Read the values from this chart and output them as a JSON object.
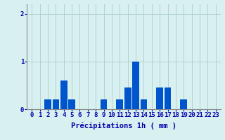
{
  "hours": [
    0,
    1,
    2,
    3,
    4,
    5,
    6,
    7,
    8,
    9,
    10,
    11,
    12,
    13,
    14,
    15,
    16,
    17,
    18,
    19,
    20,
    21,
    22,
    23
  ],
  "values": [
    0.0,
    0.0,
    0.2,
    0.2,
    0.6,
    0.2,
    0.0,
    0.0,
    0.0,
    0.2,
    0.0,
    0.2,
    0.45,
    1.0,
    0.2,
    0.0,
    0.45,
    0.45,
    0.0,
    0.2,
    0.0,
    0.0,
    0.0,
    0.0
  ],
  "bar_color": "#0055cc",
  "bg_color": "#d8f0f0",
  "grid_color": "#aacece",
  "axis_color": "#0000aa",
  "tick_color": "#0000aa",
  "xlabel": "Précipitations 1h ( mm )",
  "ylim": [
    0,
    2.2
  ],
  "yticks": [
    0,
    1,
    2
  ],
  "xlabel_fontsize": 7.5,
  "tick_fontsize": 6.5,
  "bar_width": 0.85
}
